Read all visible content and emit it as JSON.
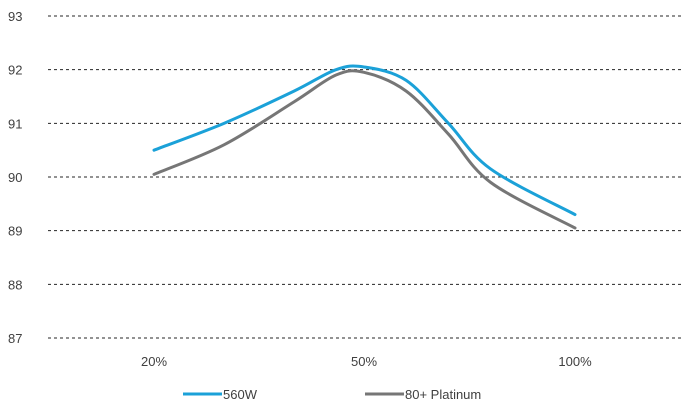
{
  "chart_data": {
    "type": "line",
    "x": [
      "20%",
      "50%",
      "100%"
    ],
    "ylim": [
      87,
      93
    ],
    "yticks": [
      87,
      88,
      89,
      90,
      91,
      92,
      93
    ],
    "grid": true,
    "legend_position": "bottom",
    "series": [
      {
        "name": "560W",
        "color": "#1ba1d8",
        "x": [
          20,
          30,
          40,
          46,
          50,
          60,
          70,
          80,
          100
        ],
        "values": [
          90.5,
          91.0,
          91.6,
          92.0,
          92.05,
          91.8,
          91.0,
          90.15,
          89.3
        ]
      },
      {
        "name": "80+ Platinum",
        "color": "#767676",
        "x": [
          20,
          30,
          40,
          46,
          50,
          60,
          70,
          80,
          100
        ],
        "values": [
          90.05,
          90.6,
          91.4,
          91.9,
          91.95,
          91.6,
          90.8,
          89.9,
          89.05
        ]
      }
    ]
  }
}
